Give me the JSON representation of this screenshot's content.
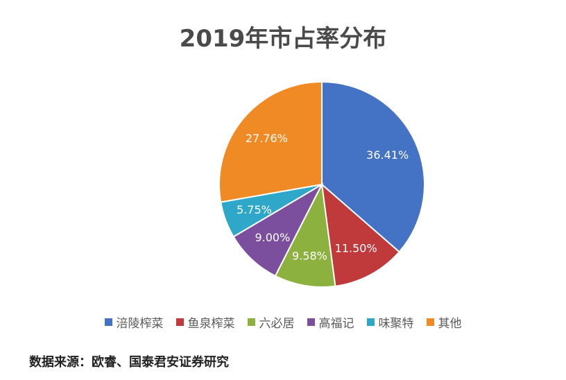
{
  "chart_data": {
    "type": "pie",
    "title": "2019年市占率分布",
    "slices": [
      {
        "name": "涪陵榨菜",
        "value": 36.41,
        "label": "36.41%",
        "color": "#4472C4"
      },
      {
        "name": "鱼泉榨菜",
        "value": 11.5,
        "label": "11.50%",
        "color": "#C0393B"
      },
      {
        "name": "六必居",
        "value": 9.58,
        "label": "9.58%",
        "color": "#8DB13F"
      },
      {
        "name": "高福记",
        "value": 9.0,
        "label": "9.00%",
        "color": "#7B4F9E"
      },
      {
        "name": "味聚特",
        "value": 5.75,
        "label": "5.75%",
        "color": "#2FA7C9"
      },
      {
        "name": "其他",
        "value": 27.76,
        "label": "27.76%",
        "color": "#F08A24"
      }
    ],
    "start_angle": "12 o'clock",
    "direction": "clockwise",
    "legend_position": "bottom"
  },
  "source": "数据来源：欧睿、国泰君安证券研究"
}
